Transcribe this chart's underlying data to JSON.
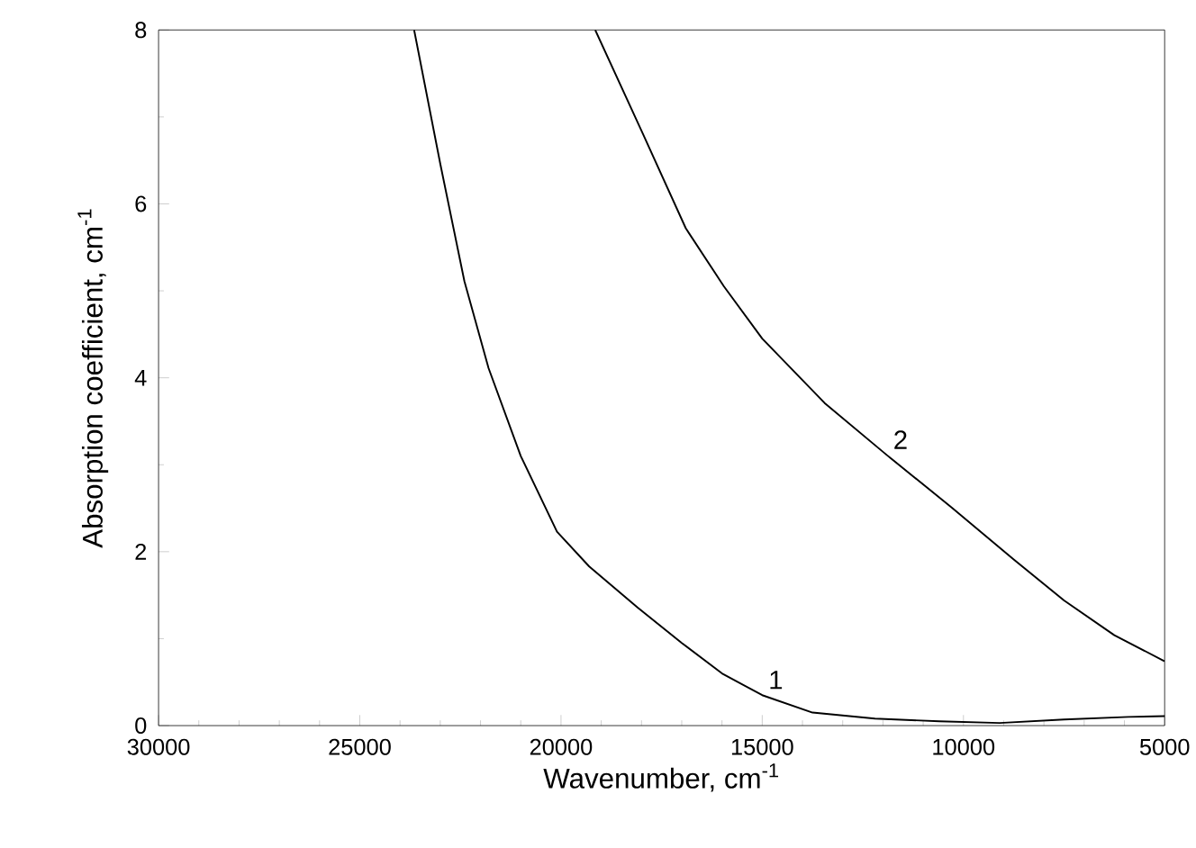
{
  "chart_data": {
    "type": "line",
    "xlabel": "Wavenumber, cm$^{-1}$",
    "ylabel": "Absorption coefficient, cm$^{-1}$",
    "xlim": [
      30000,
      5000
    ],
    "ylim": [
      0,
      8
    ],
    "xticks": [
      30000,
      25000,
      20000,
      15000,
      10000,
      5000
    ],
    "yticks": [
      0,
      2,
      4,
      6,
      8
    ],
    "grid": false,
    "marker": "none",
    "line_style": "solid",
    "series": [
      {
        "name": "1",
        "color": "#000000",
        "x": [
          23650,
          23000,
          22400,
          21800,
          21000,
          20100,
          19300,
          18100,
          17000,
          16000,
          15000,
          13750,
          12200,
          10600,
          9100,
          7500,
          5900,
          5000
        ],
        "values": [
          8,
          6.46,
          5.11,
          4.11,
          3.1,
          2.23,
          1.83,
          1.36,
          0.95,
          0.6,
          0.35,
          0.15,
          0.08,
          0.05,
          0.03,
          0.07,
          0.1,
          0.11
        ]
      },
      {
        "name": "2",
        "color": "#000000",
        "x": [
          19150,
          17950,
          16900,
          15950,
          15000,
          13450,
          11900,
          10300,
          8750,
          7500,
          6250,
          5000
        ],
        "values": [
          8,
          6.79,
          5.72,
          5.05,
          4.45,
          3.71,
          3.11,
          2.51,
          1.91,
          1.44,
          1.04,
          0.74
        ]
      }
    ]
  }
}
